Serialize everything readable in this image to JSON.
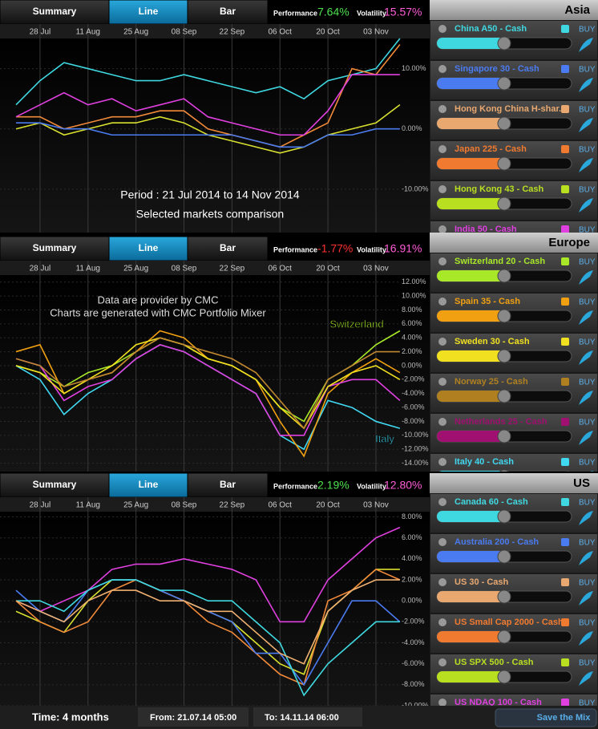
{
  "panels": [
    {
      "tabs": [
        "Summary",
        "Line",
        "Bar"
      ],
      "performance_label": "Performance",
      "performance": "7.64%",
      "performance_color": "#4ee04e",
      "volatility_label": "Volatility",
      "volatility": "15.57%",
      "volatility_color": "#ff5cd6",
      "chart": {
        "type": "line",
        "x": [
          null,
          "28 Jul",
          null,
          "11 Aug",
          null,
          "25 Aug",
          null,
          "08 Sep",
          null,
          "22 Sep",
          null,
          "06 Oct",
          null,
          "20 Oct",
          null,
          "03 Nov",
          null
        ],
        "ylim": [
          -17.2,
          15
        ],
        "yticks": [
          {
            "value": 10,
            "label": "10.00%"
          },
          {
            "value": 0,
            "label": "0.00%"
          },
          {
            "value": -10,
            "label": "-10.00%"
          }
        ],
        "series": [
          {
            "color": "#3fd8e0",
            "values": [
              4,
              8,
              11,
              10,
              9,
              8,
              8,
              9,
              8,
              7,
              6,
              7,
              5,
              8,
              9,
              10,
              15
            ]
          },
          {
            "color": "#f08a3a",
            "values": [
              2,
              2,
              0,
              1,
              2,
              2,
              3,
              3,
              0,
              -1,
              -2,
              -3,
              -1,
              1,
              10,
              9,
              14
            ]
          },
          {
            "color": "#e040e0",
            "values": [
              2,
              4,
              6,
              4,
              5,
              3,
              4,
              5,
              2,
              1,
              0,
              -1,
              -1,
              3,
              9,
              9,
              9
            ]
          },
          {
            "color": "#d8e030",
            "values": [
              0,
              1,
              -1,
              0,
              1,
              1,
              2,
              1,
              -1,
              -2,
              -3,
              -4,
              -3,
              -1,
              0,
              1,
              4
            ]
          },
          {
            "color": "#4a7bf0",
            "values": [
              1,
              1,
              0,
              0,
              -1,
              -1,
              -1,
              -1,
              -1,
              -1,
              -2,
              -3,
              -3,
              -1,
              -1,
              0,
              0
            ]
          }
        ],
        "annotations": [
          "Period : 21 Jul 2014  to 14 Nov 2014",
          "Selected markets comparison"
        ]
      },
      "sidebar": {
        "title": "Asia",
        "buy": "BUY",
        "items": [
          {
            "name": "China A50 - Cash",
            "color": "#3fd8e0",
            "level": 50
          },
          {
            "name": "Singapore 30 - Cash",
            "color": "#4a7bf0",
            "level": 50
          },
          {
            "name": "Hong Kong China H-shar...",
            "color": "#e8a870",
            "level": 50
          },
          {
            "name": "Japan 225 - Cash",
            "color": "#f07a30",
            "level": 50
          },
          {
            "name": "Hong Kong 43 - Cash",
            "color": "#b8e020",
            "level": 50
          },
          {
            "name": "India 50 - Cash",
            "color": "#e040e0",
            "level": 50
          }
        ]
      }
    },
    {
      "tabs": [
        "Summary",
        "Line",
        "Bar"
      ],
      "performance_label": "Performance",
      "performance": "-1.77%",
      "performance_color": "#ff3030",
      "volatility_label": "Volatility",
      "volatility": "16.91%",
      "volatility_color": "#ff5cd6",
      "chart": {
        "type": "line",
        "x": [
          null,
          "28 Jul",
          null,
          "11 Aug",
          null,
          "25 Aug",
          null,
          "08 Sep",
          null,
          "22 Sep",
          null,
          "06 Oct",
          null,
          "20 Oct",
          null,
          "03 Nov",
          null
        ],
        "ylim": [
          -15.2,
          13
        ],
        "yticks": [
          {
            "value": 12,
            "label": "12.00%"
          },
          {
            "value": 10,
            "label": "10.00%"
          },
          {
            "value": 8,
            "label": "8.00%"
          },
          {
            "value": 6,
            "label": "6.00%"
          },
          {
            "value": 4,
            "label": "4.00%"
          },
          {
            "value": 2,
            "label": "2.00%"
          },
          {
            "value": 0,
            "label": "0.00%"
          },
          {
            "value": -2,
            "label": "-2.00%"
          },
          {
            "value": -4,
            "label": "-4.00%"
          },
          {
            "value": -6,
            "label": "-6.00%"
          },
          {
            "value": -8,
            "label": "-8.00%"
          },
          {
            "value": -10,
            "label": "-10.00%"
          },
          {
            "value": -12,
            "label": "-12.00%"
          },
          {
            "value": -14,
            "label": "-14.00%"
          }
        ],
        "series": [
          {
            "name": "Switzerland",
            "color": "#a8e828",
            "values": [
              0,
              -1,
              -3,
              -1,
              0,
              2,
              4,
              3,
              1,
              0,
              -2,
              -6,
              -8,
              -2,
              0,
              3,
              5
            ]
          },
          {
            "name": "Italy",
            "color": "#40d8f0",
            "values": [
              0,
              -2,
              -7,
              -4,
              -2,
              1,
              3,
              2,
              0,
              -2,
              -4,
              -10,
              -12,
              -5,
              -6,
              -8,
              -9
            ]
          },
          {
            "color": "#f0a010",
            "values": [
              2,
              3,
              -4,
              -2,
              -1,
              2,
              5,
              4,
              1,
              0,
              -2,
              -8,
              -13,
              -4,
              -1,
              1,
              -1
            ]
          },
          {
            "color": "#e040e0",
            "values": [
              1,
              0,
              -5,
              -3,
              -2,
              1,
              3,
              2,
              0,
              -2,
              -4,
              -10,
              -10,
              -3,
              -2,
              -2,
              -5
            ]
          },
          {
            "color": "#f0e020",
            "values": [
              0,
              -1,
              -4,
              -2,
              0,
              3,
              4,
              3,
              1,
              0,
              -2,
              -6,
              -9,
              -3,
              -1,
              0,
              -2
            ]
          },
          {
            "color": "#c08830",
            "values": [
              1,
              0,
              -3,
              -2,
              -1,
              2,
              4,
              3,
              2,
              1,
              -1,
              -5,
              -9,
              -2,
              0,
              2,
              2
            ]
          }
        ],
        "annotations": [
          "Data are provider by CMC",
          "Charts are generated with CMC Portfolio Mixer"
        ]
      },
      "sidebar": {
        "title": "Europe",
        "buy": "BUY",
        "items": [
          {
            "name": "Switzerland 20 - Cash",
            "color": "#a8e828",
            "level": 50
          },
          {
            "name": "Spain 35 - Cash",
            "color": "#f0a010",
            "level": 50
          },
          {
            "name": "Sweden 30 - Cash",
            "color": "#f0e020",
            "level": 50
          },
          {
            "name": "Norway 25 - Cash",
            "color": "#b08020",
            "level": 50
          },
          {
            "name": "Netherlands 25 - Cash",
            "color": "#a01070",
            "level": 50
          },
          {
            "name": "Italy 40 - Cash",
            "color": "#40d8f0",
            "level": 50
          }
        ]
      }
    },
    {
      "tabs": [
        "Summary",
        "Line",
        "Bar"
      ],
      "performance_label": "Performance",
      "performance": "2.19%",
      "performance_color": "#4ee04e",
      "volatility_label": "Volatility",
      "volatility": "12.80%",
      "volatility_color": "#ff5cd6",
      "chart": {
        "type": "line",
        "x": [
          null,
          "28 Jul",
          null,
          "11 Aug",
          null,
          "25 Aug",
          null,
          "08 Sep",
          null,
          "22 Sep",
          null,
          "06 Oct",
          null,
          "20 Oct",
          null,
          "03 Nov",
          null
        ],
        "ylim": [
          -10,
          8.5
        ],
        "yticks": [
          {
            "value": 8,
            "label": "8.00%"
          },
          {
            "value": 6,
            "label": "6.00%"
          },
          {
            "value": 4,
            "label": "4.00%"
          },
          {
            "value": 2,
            "label": "2.00%"
          },
          {
            "value": 0,
            "label": "0.00%"
          },
          {
            "value": -2,
            "label": "-2.00%"
          },
          {
            "value": -4,
            "label": "-4.00%"
          },
          {
            "value": -6,
            "label": "-6.00%"
          },
          {
            "value": -8,
            "label": "-8.00%"
          },
          {
            "value": -10,
            "label": "-10.00%"
          }
        ],
        "series": [
          {
            "color": "#e040e0",
            "values": [
              0,
              -1,
              0,
              1,
              3,
              3.5,
              3.5,
              4,
              3.5,
              3,
              2,
              -2,
              -2,
              2,
              4,
              6,
              7
            ]
          },
          {
            "color": "#d8e030",
            "values": [
              -1,
              -2,
              -3,
              0,
              2,
              2,
              1,
              0,
              -1,
              -2,
              -4,
              -6,
              -7,
              -1,
              1,
              3,
              3
            ]
          },
          {
            "color": "#f08a3a",
            "values": [
              0,
              -2,
              -3,
              -2,
              1,
              2,
              1,
              0,
              -2,
              -3,
              -5,
              -7,
              -8,
              0,
              1,
              3,
              2
            ]
          },
          {
            "color": "#4a7bf0",
            "values": [
              1,
              -1,
              -2,
              1,
              2,
              2,
              1,
              0,
              -1,
              -2,
              -5,
              -5,
              -8,
              -4,
              0,
              0,
              -2
            ]
          },
          {
            "color": "#3fd8e0",
            "values": [
              0,
              0,
              -1,
              1,
              2,
              2,
              1,
              1,
              0,
              0,
              -2,
              -4,
              -9,
              -6,
              -4,
              -2,
              -2
            ]
          },
          {
            "color": "#f0b070",
            "values": [
              0,
              -1,
              -2,
              0,
              1,
              1,
              0,
              0,
              -1,
              -1,
              -3,
              -5,
              -6,
              -1,
              1,
              2,
              2
            ]
          }
        ],
        "annotations": []
      },
      "sidebar": {
        "title": "US",
        "buy": "BUY",
        "items": [
          {
            "name": "Canada 60 - Cash",
            "color": "#3fd8e0",
            "level": 50
          },
          {
            "name": "Australia 200 - Cash",
            "color": "#4a7bf0",
            "level": 50
          },
          {
            "name": "US 30 - Cash",
            "color": "#e8a870",
            "level": 50
          },
          {
            "name": "US Small Cap 2000 - Cash",
            "color": "#f07a30",
            "level": 50
          },
          {
            "name": "US SPX 500 - Cash",
            "color": "#b8e020",
            "level": 50
          },
          {
            "name": "US NDAQ 100 - Cash",
            "color": "#e040e0",
            "level": 50
          }
        ]
      }
    }
  ],
  "footer": {
    "time": "Time: 4 months",
    "from": "From: 21.07.14 05:00",
    "to": "To: 14.11.14 06:00",
    "save": "Save the Mix"
  }
}
